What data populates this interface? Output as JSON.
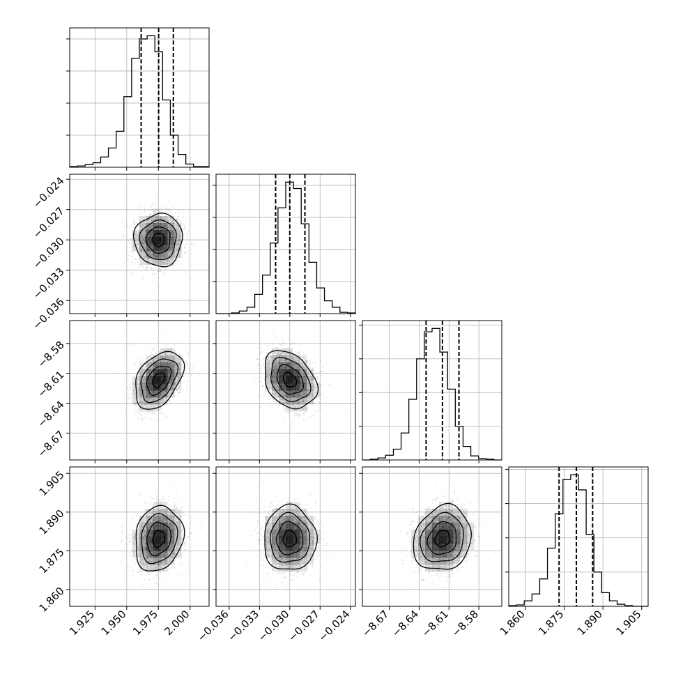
{
  "chart_data": {
    "type": "corner",
    "grid": true,
    "parameters": [
      {
        "range": [
          1.905,
          2.015
        ],
        "ticks": [
          1.925,
          1.95,
          1.975,
          2.0
        ],
        "tick_labels": [
          "1.925",
          "1.950",
          "1.975",
          "2.000"
        ],
        "quantiles": [
          1.9614,
          1.9752,
          1.9868
        ],
        "mean": 1.9752,
        "sd": 0.0095,
        "hist": [
          1,
          2,
          4,
          7,
          16,
          30,
          56,
          110,
          170,
          200,
          205,
          180,
          105,
          50,
          20,
          5,
          1,
          1
        ]
      },
      {
        "range": [
          -0.0373,
          -0.0235
        ],
        "ticks": [
          -0.036,
          -0.033,
          -0.03,
          -0.027,
          -0.024
        ],
        "tick_labels": [
          "−0.036",
          "−0.033",
          "−0.030",
          "−0.027",
          "−0.024"
        ],
        "quantiles": [
          -0.0314,
          -0.03,
          -0.0285
        ],
        "mean": -0.03,
        "sd": 0.0013,
        "hist": [
          0,
          0,
          1,
          4,
          10,
          30,
          60,
          110,
          165,
          205,
          195,
          140,
          80,
          40,
          20,
          10,
          2,
          1
        ]
      },
      {
        "range": [
          -8.697,
          -8.557
        ],
        "ticks": [
          -8.67,
          -8.64,
          -8.61,
          -8.58
        ],
        "tick_labels": [
          "−8.67",
          "−8.64",
          "−8.61",
          "−8.58"
        ],
        "quantiles": [
          -8.633,
          -8.6166,
          -8.6
        ],
        "mean": -8.6166,
        "sd": 0.0145,
        "hist": [
          0,
          1,
          3,
          7,
          16,
          40,
          90,
          150,
          190,
          195,
          160,
          105,
          50,
          20,
          6,
          2,
          1,
          0
        ]
      },
      {
        "range": [
          1.8535,
          1.9075
        ],
        "ticks": [
          1.86,
          1.875,
          1.89,
          1.905
        ],
        "tick_labels": [
          "1.860",
          "1.875",
          "1.890",
          "1.905"
        ],
        "quantiles": [
          1.873,
          1.8797,
          1.886
        ],
        "mean": 1.8797,
        "sd": 0.0063,
        "hist": [
          1,
          2,
          8,
          18,
          40,
          85,
          135,
          185,
          192,
          170,
          105,
          50,
          20,
          8,
          3,
          1,
          0,
          0
        ]
      }
    ],
    "pair_correlations": [
      {
        "i": 1,
        "j": 0,
        "r": 0.0
      },
      {
        "i": 2,
        "j": 0,
        "r": 0.4
      },
      {
        "i": 2,
        "j": 1,
        "r": -0.3
      },
      {
        "i": 3,
        "j": 0,
        "r": 0.15
      },
      {
        "i": 3,
        "j": 1,
        "r": 0.0
      },
      {
        "i": 3,
        "j": 2,
        "r": 0.15
      }
    ],
    "contour_levels": [
      0.5,
      1.0,
      1.5,
      2.0
    ],
    "colors": {
      "lines": "#000000",
      "grid": "#b0b0b0",
      "points": "#000000",
      "density": "#000000"
    }
  }
}
